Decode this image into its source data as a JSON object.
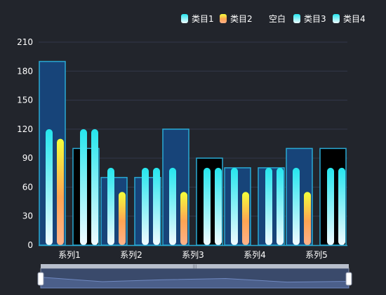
{
  "chart_data": {
    "type": "bar",
    "categories": [
      "系列1",
      "系列2",
      "系列3",
      "系列4",
      "系列5"
    ],
    "yticks": [
      0,
      30,
      60,
      90,
      120,
      150,
      180,
      210
    ],
    "ylim": [
      0,
      210
    ],
    "grid": true,
    "legend_position": "top-right",
    "legend": [
      {
        "name": "类目1",
        "color_top": "#25e6ee",
        "color_bottom": "#f2fbff"
      },
      {
        "name": "类目2",
        "color_top": "#f2ff3a",
        "color_bottom": "#ff8f55"
      },
      {
        "name": "空白",
        "color_top": null,
        "color_bottom": null
      },
      {
        "name": "类目3",
        "color_top": "#25e6ee",
        "color_bottom": "#f2fbff"
      },
      {
        "name": "类目4",
        "color_top": "#25e6ee",
        "color_bottom": "#f2fbff"
      }
    ],
    "background_series": [
      {
        "category": "系列1",
        "values": [
          190,
          100
        ]
      },
      {
        "category": "系列2",
        "values": [
          70,
          70
        ]
      },
      {
        "category": "系列3",
        "values": [
          120,
          90
        ]
      },
      {
        "category": "系列4",
        "values": [
          80,
          80
        ]
      },
      {
        "category": "系列5",
        "values": [
          100,
          100
        ]
      }
    ],
    "pill_series": [
      {
        "category": "系列1",
        "values": [
          120,
          110,
          120,
          120
        ]
      },
      {
        "category": "系列2",
        "values": [
          80,
          55,
          80,
          80
        ]
      },
      {
        "category": "系列3",
        "values": [
          80,
          55,
          80,
          80
        ]
      },
      {
        "category": "系列4",
        "values": [
          80,
          55,
          80,
          80
        ]
      },
      {
        "category": "系列5",
        "values": [
          80,
          55,
          80,
          80
        ]
      }
    ],
    "colors": {
      "background": "#22252c",
      "frame_stroke": "#29a9d3",
      "frame_fill_high": "#174479",
      "frame_fill_low": "#000000",
      "text": "#ffffff",
      "grid": "#33384a"
    }
  },
  "datazoom": {
    "handle_label": "|||",
    "preview_values": [
      0.55,
      0.32,
      0.42,
      0.48,
      0.3,
      0.34
    ],
    "range_start": 0,
    "range_end": 100
  }
}
